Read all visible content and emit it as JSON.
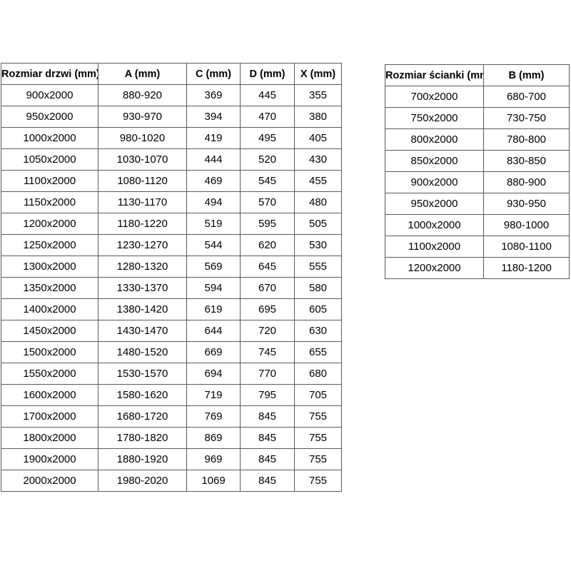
{
  "table_doors": {
    "headers": [
      "Rozmiar drzwi (mm)",
      "A (mm)",
      "C (mm)",
      "D (mm)",
      "X (mm)"
    ],
    "rows": [
      [
        "900x2000",
        "880-920",
        "369",
        "445",
        "355"
      ],
      [
        "950x2000",
        "930-970",
        "394",
        "470",
        "380"
      ],
      [
        "1000x2000",
        "980-1020",
        "419",
        "495",
        "405"
      ],
      [
        "1050x2000",
        "1030-1070",
        "444",
        "520",
        "430"
      ],
      [
        "1100x2000",
        "1080-1120",
        "469",
        "545",
        "455"
      ],
      [
        "1150x2000",
        "1130-1170",
        "494",
        "570",
        "480"
      ],
      [
        "1200x2000",
        "1180-1220",
        "519",
        "595",
        "505"
      ],
      [
        "1250x2000",
        "1230-1270",
        "544",
        "620",
        "530"
      ],
      [
        "1300x2000",
        "1280-1320",
        "569",
        "645",
        "555"
      ],
      [
        "1350x2000",
        "1330-1370",
        "594",
        "670",
        "580"
      ],
      [
        "1400x2000",
        "1380-1420",
        "619",
        "695",
        "605"
      ],
      [
        "1450x2000",
        "1430-1470",
        "644",
        "720",
        "630"
      ],
      [
        "1500x2000",
        "1480-1520",
        "669",
        "745",
        "655"
      ],
      [
        "1550x2000",
        "1530-1570",
        "694",
        "770",
        "680"
      ],
      [
        "1600x2000",
        "1580-1620",
        "719",
        "795",
        "705"
      ],
      [
        "1700x2000",
        "1680-1720",
        "769",
        "845",
        "755"
      ],
      [
        "1800x2000",
        "1780-1820",
        "869",
        "845",
        "755"
      ],
      [
        "1900x2000",
        "1880-1920",
        "969",
        "845",
        "755"
      ],
      [
        "2000x2000",
        "1980-2020",
        "1069",
        "845",
        "755"
      ]
    ]
  },
  "table_walls": {
    "headers": [
      "Rozmiar ścianki (mm)",
      "B (mm)"
    ],
    "rows": [
      [
        "700x2000",
        "680-700"
      ],
      [
        "750x2000",
        "730-750"
      ],
      [
        "800x2000",
        "780-800"
      ],
      [
        "850x2000",
        "830-850"
      ],
      [
        "900x2000",
        "880-900"
      ],
      [
        "950x2000",
        "930-950"
      ],
      [
        "1000x2000",
        "980-1000"
      ],
      [
        "1100x2000",
        "1080-1100"
      ],
      [
        "1200x2000",
        "1180-1200"
      ]
    ]
  },
  "colors": {
    "table_border": "#595959",
    "text": "#000000",
    "background": "#ffffff"
  }
}
